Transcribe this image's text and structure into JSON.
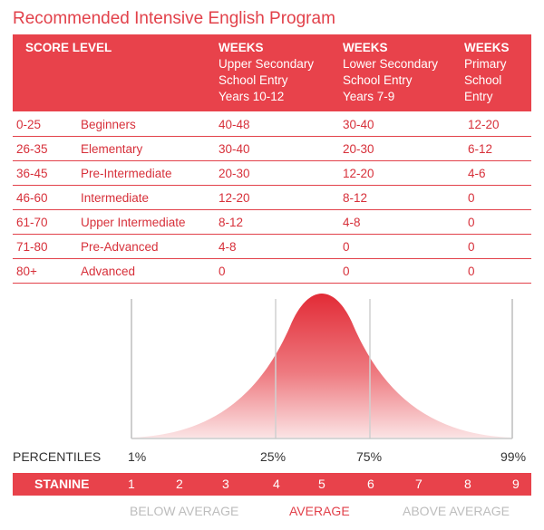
{
  "title": "Recommended Intensive English Program",
  "header": {
    "score_level": "SCORE LEVEL",
    "col1": {
      "heading": "WEEKS",
      "lines": [
        "Upper Secondary",
        "School Entry",
        "Years 10-12"
      ]
    },
    "col2": {
      "heading": "WEEKS",
      "lines": [
        "Lower Secondary",
        "School Entry",
        "Years 7-9"
      ]
    },
    "col3": {
      "heading": "WEEKS",
      "lines": [
        "Primary",
        "School",
        "Entry"
      ]
    }
  },
  "rows": [
    {
      "range": "0-25",
      "level": "Beginners",
      "upper": "40-48",
      "lower": "30-40",
      "primary": "12-20"
    },
    {
      "range": "26-35",
      "level": "Elementary",
      "upper": "30-40",
      "lower": "20-30",
      "primary": "6-12"
    },
    {
      "range": "36-45",
      "level": "Pre-Intermediate",
      "upper": "20-30",
      "lower": "12-20",
      "primary": "4-6"
    },
    {
      "range": "46-60",
      "level": "Intermediate",
      "upper": "12-20",
      "lower": "8-12",
      "primary": "0"
    },
    {
      "range": "61-70",
      "level": "Upper Intermediate",
      "upper": "8-12",
      "lower": "4-8",
      "primary": "0"
    },
    {
      "range": "71-80",
      "level": "Pre-Advanced",
      "upper": "4-8",
      "lower": "0",
      "primary": "0"
    },
    {
      "range": "80+",
      "level": "Advanced",
      "upper": "0",
      "lower": "0",
      "primary": "0"
    }
  ],
  "percentiles": {
    "label": "PERCENTILES",
    "p1": "1%",
    "p25": "25%",
    "p75": "75%",
    "p99": "99%"
  },
  "stanine": {
    "label": "STANINE",
    "values": [
      "1",
      "2",
      "3",
      "4",
      "5",
      "6",
      "7",
      "8",
      "9"
    ]
  },
  "bands": {
    "below": "BELOW AVERAGE",
    "average": "AVERAGE",
    "above": "ABOVE AVERAGE"
  },
  "colors": {
    "accent": "#e8424b",
    "muted": "#bdbdbd"
  }
}
